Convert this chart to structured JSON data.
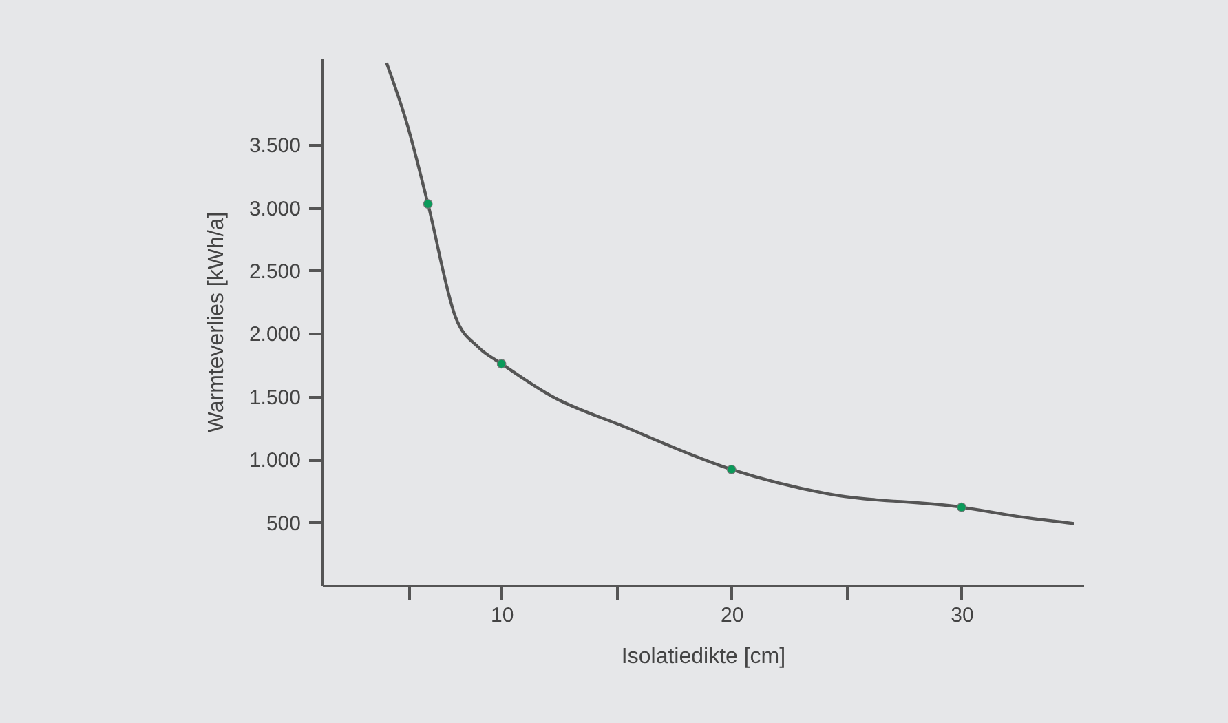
{
  "chart_data": {
    "type": "line",
    "xlabel": "Isolatiedikte [cm]",
    "ylabel": "Warmteverlies [kWh/a]",
    "xlim": [
      2.2,
      35.3
    ],
    "xticks": [
      {
        "value": 6,
        "label": null
      },
      10,
      {
        "value": 15,
        "label": null
      },
      20,
      {
        "value": 25,
        "label": null
      },
      30
    ],
    "ylim": [
      0,
      4190
    ],
    "yticks": [
      500,
      {
        "value": 1000,
        "label": "1.000"
      },
      {
        "value": 1500,
        "label": "1.500"
      },
      {
        "value": 2000,
        "label": "2.000"
      },
      {
        "value": 2500,
        "label": "2.500"
      },
      {
        "value": 3000,
        "label": "3.000"
      },
      {
        "value": 3500,
        "label": "3.500"
      }
    ],
    "grid": false,
    "series": [
      {
        "type": "line",
        "color": "#555555",
        "marker": "none",
        "x": [
          5.0,
          5.9,
          6.8,
          8.0,
          9.0,
          10,
          12.2,
          15.2,
          20,
          24.1,
          30,
          32.5,
          34.9
        ],
        "values": [
          4150,
          3660,
          3030,
          2130,
          1890,
          1760,
          1500,
          1270,
          920,
          730,
          620,
          545,
          490
        ]
      },
      {
        "type": "scatter",
        "color": "#0a9a5a",
        "marker": "circle",
        "x": [
          6.8,
          10,
          20,
          30
        ],
        "values": [
          3030,
          1760,
          920,
          620
        ]
      }
    ]
  }
}
